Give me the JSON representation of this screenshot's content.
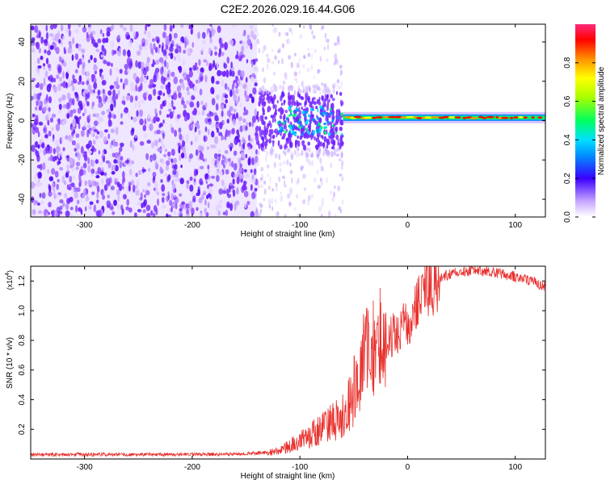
{
  "title": "C2E2.2026.029.16.44.G06",
  "chart_data": [
    {
      "type": "heatmap",
      "xlabel": "Height of straight line (km)",
      "ylabel": "Frequency (Hz)",
      "xlim": [
        -350,
        128
      ],
      "ylim": [
        -49,
        49
      ],
      "xticks": [
        -300,
        -200,
        -100,
        0,
        100
      ],
      "yticks": [
        -40,
        -20,
        0,
        20,
        40
      ],
      "colorbar": {
        "label": "Normalized spectral amplitude",
        "range": [
          0,
          1
        ],
        "ticks": [
          "0.0",
          "0.2",
          "0.4",
          "0.6",
          "0.8"
        ],
        "tick_values": [
          0,
          0.2,
          0.4,
          0.6,
          0.8
        ]
      },
      "description_features": {
        "noise_region_x": [
          -350,
          -140
        ],
        "transition_x": [
          -140,
          -60
        ],
        "carrier_line_x": [
          -60,
          128
        ],
        "carrier_frequency_hz": 1.5
      }
    },
    {
      "type": "line",
      "xlabel": "Height of straight line (km)",
      "ylabel": "SNR (10 * v/v)",
      "y_multiplier": "(x10",
      "y_multiplier_exp": "4",
      "y_multiplier_close": ")",
      "xlim": [
        -350,
        128
      ],
      "ylim": [
        0,
        13000
      ],
      "xticks": [
        -300,
        -200,
        -100,
        0,
        100
      ],
      "yticks": [
        2000,
        4000,
        6000,
        8000,
        10000,
        12000
      ],
      "ytick_labels": [
        "0.2",
        "0.4",
        "0.6",
        "0.8",
        "1.0",
        "1.2"
      ],
      "color": "#e8302c",
      "series": [
        {
          "name": "SNR",
          "x": [
            -350,
            -300,
            -250,
            -200,
            -150,
            -120,
            -100,
            -80,
            -70,
            -60,
            -50,
            -40,
            -30,
            -20,
            -10,
            0,
            10,
            20,
            30,
            40,
            60,
            80,
            100,
            115,
            128
          ],
          "values": [
            300,
            300,
            300,
            300,
            350,
            500,
            1200,
            2000,
            2500,
            3000,
            4500,
            6500,
            7500,
            8000,
            8500,
            9200,
            10500,
            11500,
            12200,
            12500,
            12700,
            12600,
            12300,
            12000,
            11600
          ]
        }
      ]
    }
  ]
}
